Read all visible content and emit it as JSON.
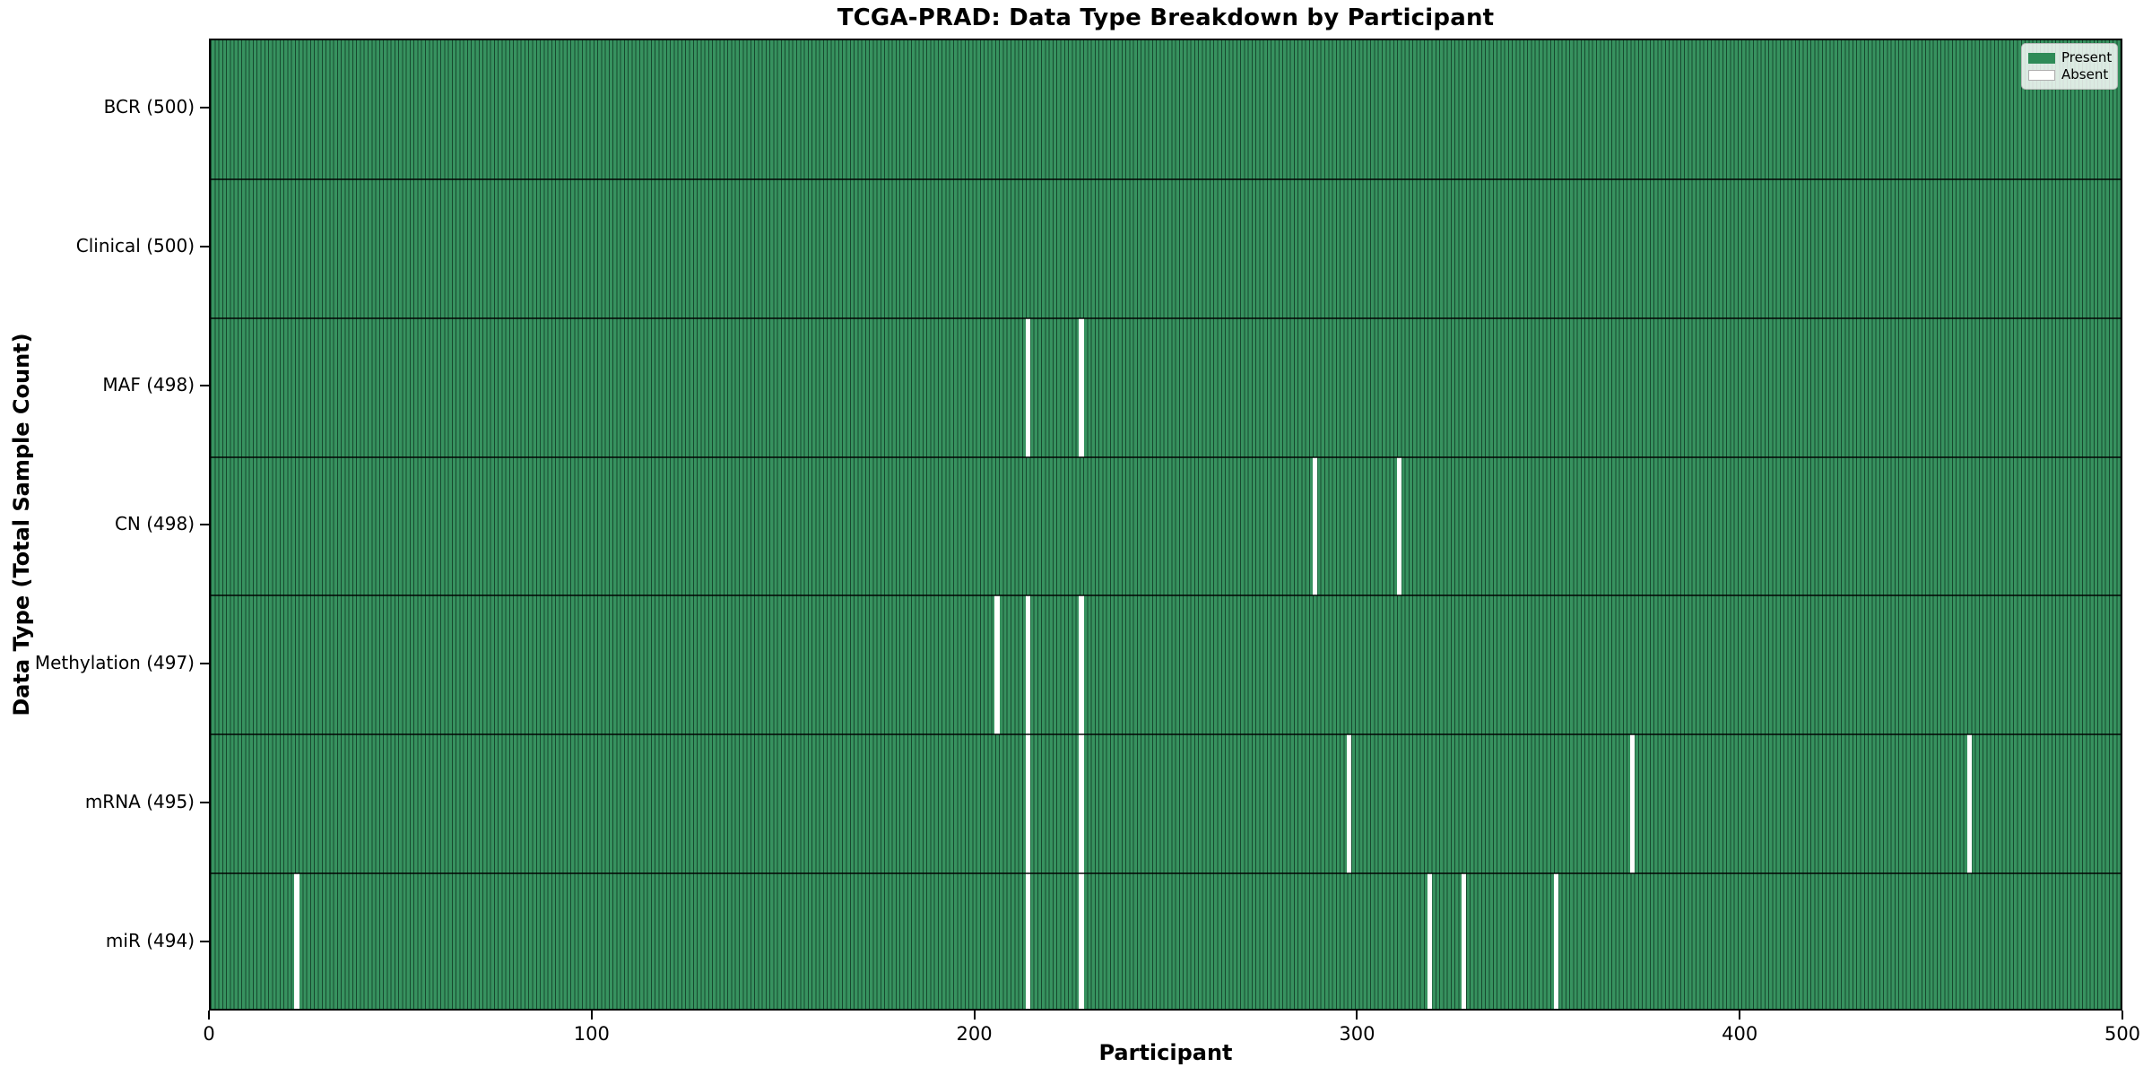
{
  "figure": {
    "title": "TCGA-PRAD: Data Type Breakdown by Participant",
    "background_color": "#ffffff"
  },
  "chart_data": {
    "type": "heatmap",
    "title": "TCGA-PRAD: Data Type Breakdown by Participant",
    "xlabel": "Participant",
    "ylabel": "Data Type (Total Sample Count)",
    "xlim": [
      0,
      500
    ],
    "x_ticks": [
      0,
      100,
      200,
      300,
      400,
      500
    ],
    "n_participants": 500,
    "grid": false,
    "colors": {
      "present": "#2e8b57",
      "absent": "#ffffff",
      "cell_edge": "#17492f",
      "row_separator": "#1a2e22"
    },
    "legend": {
      "position": "upper right",
      "entries": [
        {
          "label": "Present",
          "color": "#2e8b57"
        },
        {
          "label": "Absent",
          "color": "#ffffff"
        }
      ]
    },
    "rows": [
      {
        "label": "BCR (500)",
        "data_type": "BCR",
        "total": 500,
        "absent_participants": []
      },
      {
        "label": "Clinical (500)",
        "data_type": "Clinical",
        "total": 500,
        "absent_participants": []
      },
      {
        "label": "MAF (498)",
        "data_type": "MAF",
        "total": 498,
        "absent_participants": [
          213,
          227
        ]
      },
      {
        "label": "CN (498)",
        "data_type": "CN",
        "total": 498,
        "absent_participants": [
          288,
          310
        ]
      },
      {
        "label": "Methylation (497)",
        "data_type": "Methylation",
        "total": 497,
        "absent_participants": [
          205,
          213,
          227
        ]
      },
      {
        "label": "mRNA (495)",
        "data_type": "mRNA",
        "total": 495,
        "absent_participants": [
          213,
          227,
          297,
          371,
          459
        ]
      },
      {
        "label": "miR (494)",
        "data_type": "miR",
        "total": 494,
        "absent_participants": [
          22,
          213,
          227,
          318,
          327,
          351
        ]
      }
    ]
  }
}
